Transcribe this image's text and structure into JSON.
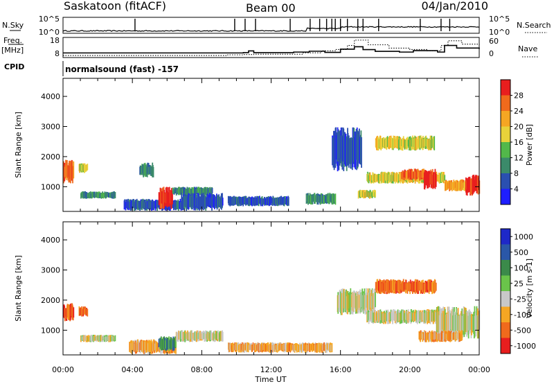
{
  "header": {
    "station": "Saskatoon (fitACF)",
    "beam": "Beam 00",
    "date": "04/Jan/2010"
  },
  "side_labels": {
    "nsky": "N.Sky",
    "freq": "Freq.",
    "mhz": "[MHz]",
    "cpid": "CPID",
    "nsearch": "N.Search",
    "nave": "Nave"
  },
  "cpid_text": "normalsound (fast) -157",
  "xaxis": {
    "label": "Time UT",
    "range_hours": [
      0,
      24
    ],
    "tick_hours": [
      0,
      4,
      8,
      12,
      16,
      20,
      24
    ],
    "tick_labels": [
      "00:00",
      "04:00",
      "08:00",
      "12:00",
      "16:00",
      "20:00",
      "00:00"
    ]
  },
  "chart_data": [
    {
      "type": "line",
      "panel": "N.Sky / N.Search",
      "y_left_ticks": [
        "10^5",
        "10^0"
      ],
      "y_right_ticks": [
        "10^5",
        "10^0"
      ],
      "log_scale": true,
      "spikes_hours": [
        4.15,
        9.9,
        10.5,
        11.1,
        13.1,
        14.25,
        14.8,
        15.2,
        15.5,
        15.7,
        16.0,
        16.4,
        17.0,
        17.3,
        18.2,
        20.6,
        21.8,
        22.3
      ]
    },
    {
      "type": "line",
      "panel": "Freq / Nave",
      "y_left_ticks": [
        "18",
        "8"
      ],
      "y_right_ticks": [
        "60",
        "0"
      ],
      "series": [
        {
          "name": "Freq",
          "x": [
            0,
            10.4,
            10.7,
            11.0,
            13.3,
            14.2,
            15.1,
            16.0,
            16.8,
            17.3,
            18.0,
            19.4,
            20.2,
            21.6,
            22.0,
            22.7,
            24
          ],
          "y": [
            9.2,
            9.4,
            10.6,
            9.4,
            9.8,
            10.4,
            9.6,
            11.8,
            13.5,
            11.5,
            10.3,
            9.8,
            10.8,
            9.8,
            14.4,
            12.6,
            12.0
          ]
        },
        {
          "name": "Nave",
          "x": [
            0,
            9.5,
            10.4,
            11.0,
            13.8,
            14.9,
            15.7,
            16.4,
            16.8,
            17.6,
            18.8,
            20.0,
            21.0,
            21.8,
            22.2,
            23.0,
            24
          ],
          "y": [
            6,
            8,
            9,
            10,
            14,
            20,
            24,
            36,
            52,
            38,
            28,
            24,
            20,
            36,
            50,
            40,
            34
          ]
        }
      ]
    },
    {
      "type": "heatmap",
      "panel": "Power",
      "ylabel": "Slant Range [km]",
      "ylim": [
        180,
        4600
      ],
      "y_ticks": [
        1000,
        2000,
        3000,
        4000
      ],
      "colorbar": {
        "label": "Power [dB]",
        "ticks": [
          "4",
          "8",
          "12",
          "16",
          "20",
          "24",
          "28"
        ],
        "colors": [
          "#1e1eff",
          "#2a4fb0",
          "#3b8a6a",
          "#52b84a",
          "#e8d23a",
          "#f5a623",
          "#f06a1c",
          "#e81e1e"
        ]
      },
      "patches": [
        {
          "t0": 0.0,
          "t1": 0.6,
          "r0": 1100,
          "r1": 1900,
          "v": 6
        },
        {
          "t0": 0.9,
          "t1": 1.4,
          "r0": 1450,
          "r1": 1800,
          "v": 4
        },
        {
          "t0": 1.0,
          "t1": 3.0,
          "r0": 600,
          "r1": 850,
          "v": 2
        },
        {
          "t0": 3.5,
          "t1": 6.8,
          "r0": 200,
          "r1": 600,
          "v": 1
        },
        {
          "t0": 5.5,
          "t1": 6.3,
          "r0": 250,
          "r1": 1000,
          "v": 7
        },
        {
          "t0": 6.3,
          "t1": 8.6,
          "r0": 700,
          "r1": 1000,
          "v": 2
        },
        {
          "t0": 4.4,
          "t1": 5.2,
          "r0": 1300,
          "r1": 1800,
          "v": 2
        },
        {
          "t0": 6.8,
          "t1": 9.2,
          "r0": 200,
          "r1": 800,
          "v": 1
        },
        {
          "t0": 9.5,
          "t1": 13.0,
          "r0": 350,
          "r1": 700,
          "v": 1
        },
        {
          "t0": 14.0,
          "t1": 15.7,
          "r0": 400,
          "r1": 800,
          "v": 2
        },
        {
          "t0": 15.5,
          "t1": 17.2,
          "r0": 1500,
          "r1": 3000,
          "v": 1
        },
        {
          "t0": 17.0,
          "t1": 18.0,
          "r0": 600,
          "r1": 900,
          "v": 4
        },
        {
          "t0": 17.5,
          "t1": 22.0,
          "r0": 1100,
          "r1": 1500,
          "v": 4
        },
        {
          "t0": 19.5,
          "t1": 20.8,
          "r0": 1200,
          "r1": 1600,
          "v": 6
        },
        {
          "t0": 20.8,
          "t1": 21.5,
          "r0": 900,
          "r1": 1600,
          "v": 7
        },
        {
          "t0": 18.0,
          "t1": 21.4,
          "r0": 2200,
          "r1": 2700,
          "v": 4
        },
        {
          "t0": 22.0,
          "t1": 23.6,
          "r0": 850,
          "r1": 1250,
          "v": 5
        },
        {
          "t0": 23.2,
          "t1": 24.0,
          "r0": 700,
          "r1": 1400,
          "v": 7
        }
      ]
    },
    {
      "type": "heatmap",
      "panel": "Velocity",
      "ylabel": "Slant Range [km]",
      "ylim": [
        180,
        4600
      ],
      "y_ticks": [
        1000,
        2000,
        3000,
        4000
      ],
      "colorbar": {
        "label": "Velocity [m s-1]",
        "ticks": [
          "1000",
          "500",
          "100",
          "25",
          "-25",
          "-100",
          "-500",
          "-1000"
        ],
        "colors": [
          "#1e28c8",
          "#2a57a8",
          "#3b8a4a",
          "#6ac44a",
          "#c8c8c8",
          "#f5a623",
          "#f06a1c",
          "#e81e1e"
        ]
      },
      "patches": [
        {
          "t0": 0.0,
          "t1": 0.6,
          "r0": 1300,
          "r1": 1900,
          "v": 6
        },
        {
          "t0": 0.9,
          "t1": 1.4,
          "r0": 1450,
          "r1": 1800,
          "v": 6
        },
        {
          "t0": 1.0,
          "t1": 3.0,
          "r0": 600,
          "r1": 850,
          "v": 4
        },
        {
          "t0": 3.8,
          "t1": 6.5,
          "r0": 200,
          "r1": 700,
          "v": 5
        },
        {
          "t0": 5.5,
          "t1": 6.5,
          "r0": 300,
          "r1": 800,
          "v": 2
        },
        {
          "t0": 6.5,
          "t1": 9.2,
          "r0": 600,
          "r1": 1000,
          "v": 4
        },
        {
          "t0": 9.5,
          "t1": 15.5,
          "r0": 250,
          "r1": 600,
          "v": 5
        },
        {
          "t0": 15.8,
          "t1": 18.0,
          "r0": 1500,
          "r1": 2400,
          "v": 4
        },
        {
          "t0": 17.5,
          "t1": 22.0,
          "r0": 1200,
          "r1": 1700,
          "v": 4
        },
        {
          "t0": 18.0,
          "t1": 21.5,
          "r0": 2200,
          "r1": 2700,
          "v": 6
        },
        {
          "t0": 21.5,
          "t1": 24.0,
          "r0": 700,
          "r1": 1800,
          "v": 4
        },
        {
          "t0": 20.5,
          "t1": 23.0,
          "r0": 600,
          "r1": 1000,
          "v": 5
        }
      ]
    }
  ]
}
